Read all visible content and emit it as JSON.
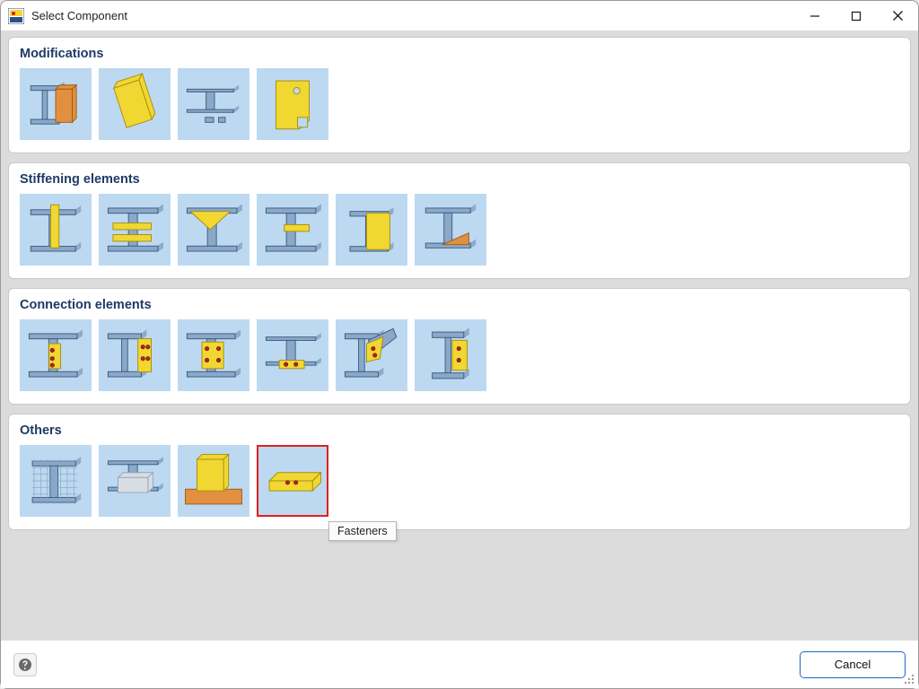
{
  "window_title": "Select Component",
  "colors": {
    "tile_bg": "#bcd9f1",
    "section_bg": "#ffffff",
    "body_bg": "#dcdcdc",
    "section_title": "#1f3a66",
    "selected_border": "#e02020",
    "cancel_border": "#1e66c7",
    "beam_fill": "#8aa8c9",
    "beam_stroke": "#3a5a7d",
    "plate_yellow": "#f0d732",
    "plate_yellow_stroke": "#a88c0e",
    "plate_orange": "#e09040",
    "plate_orange_stroke": "#a05a12",
    "bolt_red": "#b02020"
  },
  "sections": [
    {
      "key": "modifications",
      "title": "Modifications",
      "tiles": [
        {
          "name": "end-plate-on-beam",
          "shape": "mod-endplate"
        },
        {
          "name": "tilted-plate",
          "shape": "mod-tilted"
        },
        {
          "name": "beam-with-notches",
          "shape": "mod-notch"
        },
        {
          "name": "cut-plate-with-hole",
          "shape": "mod-cutplate"
        }
      ]
    },
    {
      "key": "stiffening",
      "title": "Stiffening elements",
      "tiles": [
        {
          "name": "stiffener-vertical-plate",
          "shape": "stiff-vert"
        },
        {
          "name": "stiffener-horizontal-beam",
          "shape": "stiff-horiz"
        },
        {
          "name": "stiffener-gusset",
          "shape": "stiff-gusset"
        },
        {
          "name": "stiffener-inner-plate",
          "shape": "stiff-inner"
        },
        {
          "name": "stiffener-cap-plate",
          "shape": "stiff-cap"
        },
        {
          "name": "stiffener-haunch",
          "shape": "stiff-haunch"
        }
      ]
    },
    {
      "key": "connection",
      "title": "Connection elements",
      "tiles": [
        {
          "name": "connection-web-plate",
          "shape": "conn-web"
        },
        {
          "name": "connection-end-plate",
          "shape": "conn-end"
        },
        {
          "name": "connection-splice",
          "shape": "conn-splice"
        },
        {
          "name": "connection-seat-plate",
          "shape": "conn-seat"
        },
        {
          "name": "connection-brace-gusset",
          "shape": "conn-brace"
        },
        {
          "name": "connection-column-plate",
          "shape": "conn-col"
        }
      ]
    },
    {
      "key": "others",
      "title": "Others",
      "tiles": [
        {
          "name": "mesh-overlay",
          "shape": "oth-mesh"
        },
        {
          "name": "concrete-block",
          "shape": "oth-conc"
        },
        {
          "name": "base-plate-corner",
          "shape": "oth-base"
        },
        {
          "name": "fasteners",
          "shape": "oth-fast",
          "selected": true,
          "tooltip": "Fasteners"
        }
      ]
    }
  ],
  "footer": {
    "cancel_label": "Cancel"
  }
}
